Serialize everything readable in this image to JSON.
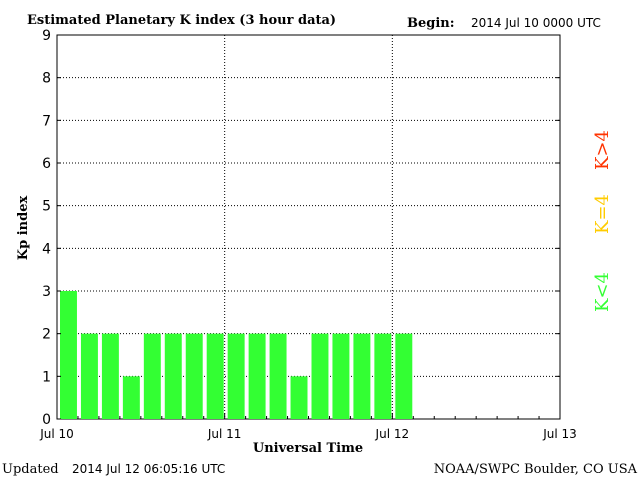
{
  "header": {
    "title": "Estimated Planetary K index (3 hour data)",
    "begin_label": "Begin:",
    "begin_value": "2014 Jul 10 0000 UTC"
  },
  "footer": {
    "updated_label": "Updated",
    "updated_value": "2014 Jul 12 06:05:16 UTC",
    "source": "NOAA/SWPC Boulder, CO USA"
  },
  "legend": {
    "items": [
      {
        "label": "K<4",
        "color": "#33ff33"
      },
      {
        "label": "K=4",
        "color": "#ffcc00"
      },
      {
        "label": "K>4",
        "color": "#ff3300"
      }
    ]
  },
  "chart_data": {
    "type": "bar",
    "title": "Estimated Planetary K index (3 hour data)",
    "xlabel": "Universal Time",
    "ylabel": "Kp index",
    "ylim": [
      0,
      9
    ],
    "yticks": [
      "0",
      "1",
      "2",
      "3",
      "4",
      "5",
      "6",
      "7",
      "8",
      "9"
    ],
    "xticks": [
      "Jul 10",
      "Jul 11",
      "Jul 12",
      "Jul 13"
    ],
    "xlim_days": 3,
    "bars_per_day": 8,
    "values": [
      3,
      2,
      2,
      1,
      2,
      2,
      2,
      2,
      2,
      2,
      2,
      1,
      2,
      2,
      2,
      2,
      2
    ],
    "bar_color": "#33ff33",
    "grid": "dotted at day boundaries and integer Kp"
  }
}
